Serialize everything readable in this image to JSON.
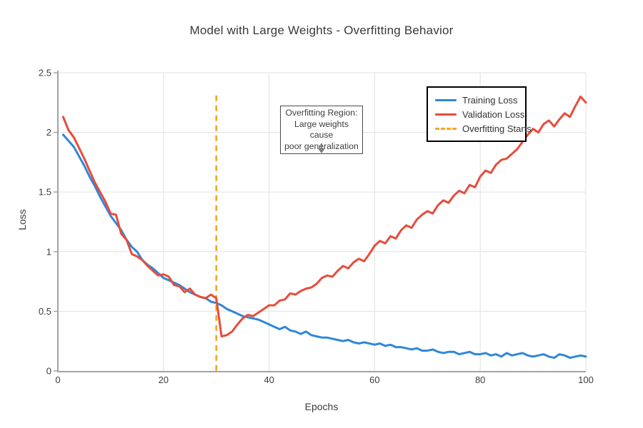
{
  "title": "Model with Large Weights - Overfitting Behavior",
  "axes": {
    "x_label": "Epochs",
    "y_label": "Loss"
  },
  "legend": {
    "items": [
      {
        "label": "Training Loss",
        "color": "#2f87d9",
        "dashed": false
      },
      {
        "label": "Validation Loss",
        "color": "#e74c3c",
        "dashed": false
      },
      {
        "label": "Overfitting Starts",
        "color": "#f5a623",
        "dashed": true
      }
    ]
  },
  "annotation": {
    "line1": "Overfitting Region:",
    "line2": "Large weights cause",
    "line3": "poor generalization"
  },
  "colors": {
    "training_blue": "#2f87d9",
    "validation_red": "#e74c3c",
    "overfitting_orange": "#f5a623",
    "gridline": "#e5e5e5",
    "spine": "#a3a3a3",
    "tick_text": "#3d3d3d"
  },
  "chart_data": {
    "type": "line",
    "title": "Model with Large Weights - Overfitting Behavior",
    "xlabel": "Epochs",
    "ylabel": "Loss",
    "xlim": [
      0,
      100
    ],
    "ylim": [
      0,
      2.5
    ],
    "xticks": [
      "0",
      "20",
      "40",
      "60",
      "80",
      "100"
    ],
    "yticks": [
      "0",
      "0.5",
      "1",
      "1.5",
      "2",
      "2.5"
    ],
    "grid": true,
    "legend_position": "upper right",
    "x": [
      1,
      2,
      3,
      4,
      5,
      6,
      7,
      8,
      9,
      10,
      11,
      12,
      13,
      14,
      15,
      16,
      17,
      18,
      19,
      20,
      21,
      22,
      23,
      24,
      25,
      26,
      27,
      28,
      29,
      30,
      31,
      32,
      33,
      34,
      35,
      36,
      37,
      38,
      39,
      40,
      41,
      42,
      43,
      44,
      45,
      46,
      47,
      48,
      49,
      50,
      51,
      52,
      53,
      54,
      55,
      56,
      57,
      58,
      59,
      60,
      61,
      62,
      63,
      64,
      65,
      66,
      67,
      68,
      69,
      70,
      71,
      72,
      73,
      74,
      75,
      76,
      77,
      78,
      79,
      80,
      81,
      82,
      83,
      84,
      85,
      86,
      87,
      88,
      89,
      90,
      91,
      92,
      93,
      94,
      95,
      96,
      97,
      98,
      99,
      100
    ],
    "series": [
      {
        "name": "Training Loss",
        "color": "#2f87d9",
        "values": [
          1.98,
          1.93,
          1.88,
          1.8,
          1.72,
          1.63,
          1.55,
          1.46,
          1.38,
          1.3,
          1.24,
          1.18,
          1.1,
          1.04,
          1.0,
          0.93,
          0.89,
          0.86,
          0.82,
          0.78,
          0.76,
          0.74,
          0.72,
          0.69,
          0.66,
          0.64,
          0.62,
          0.61,
          0.58,
          0.57,
          0.55,
          0.52,
          0.5,
          0.48,
          0.46,
          0.45,
          0.44,
          0.43,
          0.41,
          0.39,
          0.37,
          0.35,
          0.37,
          0.34,
          0.33,
          0.31,
          0.33,
          0.3,
          0.29,
          0.28,
          0.28,
          0.27,
          0.26,
          0.25,
          0.26,
          0.24,
          0.23,
          0.24,
          0.23,
          0.22,
          0.23,
          0.21,
          0.22,
          0.2,
          0.2,
          0.19,
          0.18,
          0.19,
          0.17,
          0.17,
          0.18,
          0.16,
          0.15,
          0.16,
          0.16,
          0.14,
          0.15,
          0.16,
          0.14,
          0.14,
          0.15,
          0.13,
          0.14,
          0.12,
          0.15,
          0.13,
          0.14,
          0.15,
          0.13,
          0.12,
          0.13,
          0.14,
          0.12,
          0.11,
          0.14,
          0.13,
          0.11,
          0.12,
          0.13,
          0.12
        ]
      },
      {
        "name": "Validation Loss",
        "color": "#e74c3c",
        "values": [
          2.13,
          2.02,
          1.96,
          1.87,
          1.78,
          1.68,
          1.58,
          1.5,
          1.42,
          1.32,
          1.31,
          1.15,
          1.1,
          0.98,
          0.96,
          0.93,
          0.88,
          0.84,
          0.8,
          0.81,
          0.79,
          0.72,
          0.71,
          0.66,
          0.69,
          0.64,
          0.62,
          0.61,
          0.64,
          0.61,
          0.29,
          0.3,
          0.33,
          0.39,
          0.44,
          0.47,
          0.46,
          0.49,
          0.52,
          0.55,
          0.55,
          0.59,
          0.6,
          0.65,
          0.64,
          0.67,
          0.69,
          0.7,
          0.73,
          0.78,
          0.8,
          0.79,
          0.84,
          0.88,
          0.86,
          0.91,
          0.94,
          0.92,
          0.98,
          1.05,
          1.09,
          1.07,
          1.13,
          1.11,
          1.18,
          1.22,
          1.2,
          1.27,
          1.31,
          1.34,
          1.32,
          1.39,
          1.43,
          1.41,
          1.47,
          1.51,
          1.49,
          1.56,
          1.54,
          1.63,
          1.68,
          1.66,
          1.73,
          1.77,
          1.78,
          1.82,
          1.86,
          1.92,
          1.98,
          2.03,
          2.0,
          2.07,
          2.1,
          2.05,
          2.11,
          2.16,
          2.13,
          2.22,
          2.3,
          2.25
        ]
      }
    ],
    "vline": {
      "x": 30,
      "color": "#f5a623",
      "style": "dashed",
      "label": "Overfitting Starts",
      "y_top": 2.31
    }
  }
}
